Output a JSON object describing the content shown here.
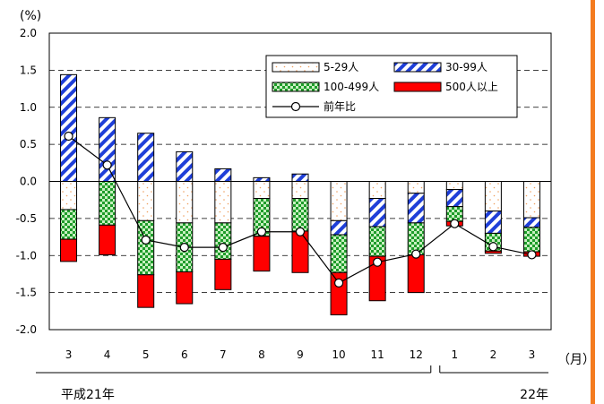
{
  "chart_data": {
    "type": "bar",
    "stacked": true,
    "title": "",
    "unit_label": "(%)",
    "x_unit_label": "（月）",
    "ylim": [
      -2.0,
      2.0
    ],
    "yticks": [
      "2.0",
      "1.5",
      "1.0",
      "0.5",
      "0.0",
      "-0.5",
      "-1.0",
      "-1.5",
      "-2.0"
    ],
    "categories": [
      "3",
      "4",
      "5",
      "6",
      "7",
      "8",
      "9",
      "10",
      "11",
      "12",
      "1",
      "2",
      "3"
    ],
    "year_groups": [
      {
        "label": "平成21年",
        "start": 0,
        "end": 9
      },
      {
        "label": "22年",
        "start": 10,
        "end": 12
      }
    ],
    "series": [
      {
        "name": "5-29人",
        "color": "#ffffff",
        "values": [
          -0.38,
          0.0,
          -0.53,
          -0.56,
          -0.56,
          -0.23,
          -0.23,
          -0.53,
          -0.23,
          -0.16,
          -0.11,
          -0.4,
          -0.49
        ]
      },
      {
        "name": "30-99人",
        "color": "#1f3fd8",
        "values": [
          1.44,
          0.86,
          0.65,
          0.4,
          0.17,
          0.05,
          0.1,
          -0.19,
          -0.38,
          -0.4,
          -0.23,
          -0.3,
          -0.13
        ]
      },
      {
        "name": "100-499人",
        "color": "#1e9c2a",
        "values": [
          -0.4,
          -0.59,
          -0.73,
          -0.66,
          -0.49,
          -0.51,
          -0.44,
          -0.51,
          -0.4,
          -0.43,
          -0.2,
          -0.24,
          -0.33
        ]
      },
      {
        "name": "500人以上",
        "color": "#ff0000",
        "values": [
          -0.3,
          -0.4,
          -0.44,
          -0.43,
          -0.41,
          -0.47,
          -0.56,
          -0.57,
          -0.6,
          -0.51,
          -0.06,
          -0.03,
          -0.06
        ]
      }
    ],
    "line": {
      "name": "前年比",
      "values": [
        0.61,
        0.22,
        -0.79,
        -0.89,
        -0.89,
        -0.68,
        -0.68,
        -1.37,
        -1.09,
        -0.98,
        -0.57,
        -0.88,
        -0.99
      ]
    },
    "grid": "horizontal-dashed",
    "legend_position": "top-right"
  },
  "accent_color": "#f47c20"
}
